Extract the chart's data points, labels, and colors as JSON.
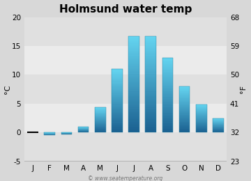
{
  "title": "Holmsund water temp",
  "months": [
    "J",
    "F",
    "M",
    "A",
    "M",
    "J",
    "J",
    "A",
    "S",
    "O",
    "N",
    "D"
  ],
  "values": [
    0.0,
    -0.5,
    -0.3,
    1.0,
    4.4,
    11.0,
    16.7,
    16.7,
    13.0,
    8.0,
    4.9,
    2.5
  ],
  "ylabel_left": "°C",
  "ylabel_right": "°F",
  "yticks_left": [
    -5,
    0,
    5,
    10,
    15,
    20
  ],
  "yticks_right": [
    23,
    32,
    41,
    50,
    59,
    68
  ],
  "ylim": [
    -5,
    20
  ],
  "bar_color_top": "#64d4f0",
  "bar_color_bottom": "#1a6090",
  "bg_color": "#d8d8d8",
  "plot_bg_color_top": "#e8e8e8",
  "plot_bg_color_bottom": "#f4f4f4",
  "watermark": "© www.seatemperature.org",
  "title_fontsize": 11,
  "axis_fontsize": 8,
  "tick_fontsize": 7.5
}
